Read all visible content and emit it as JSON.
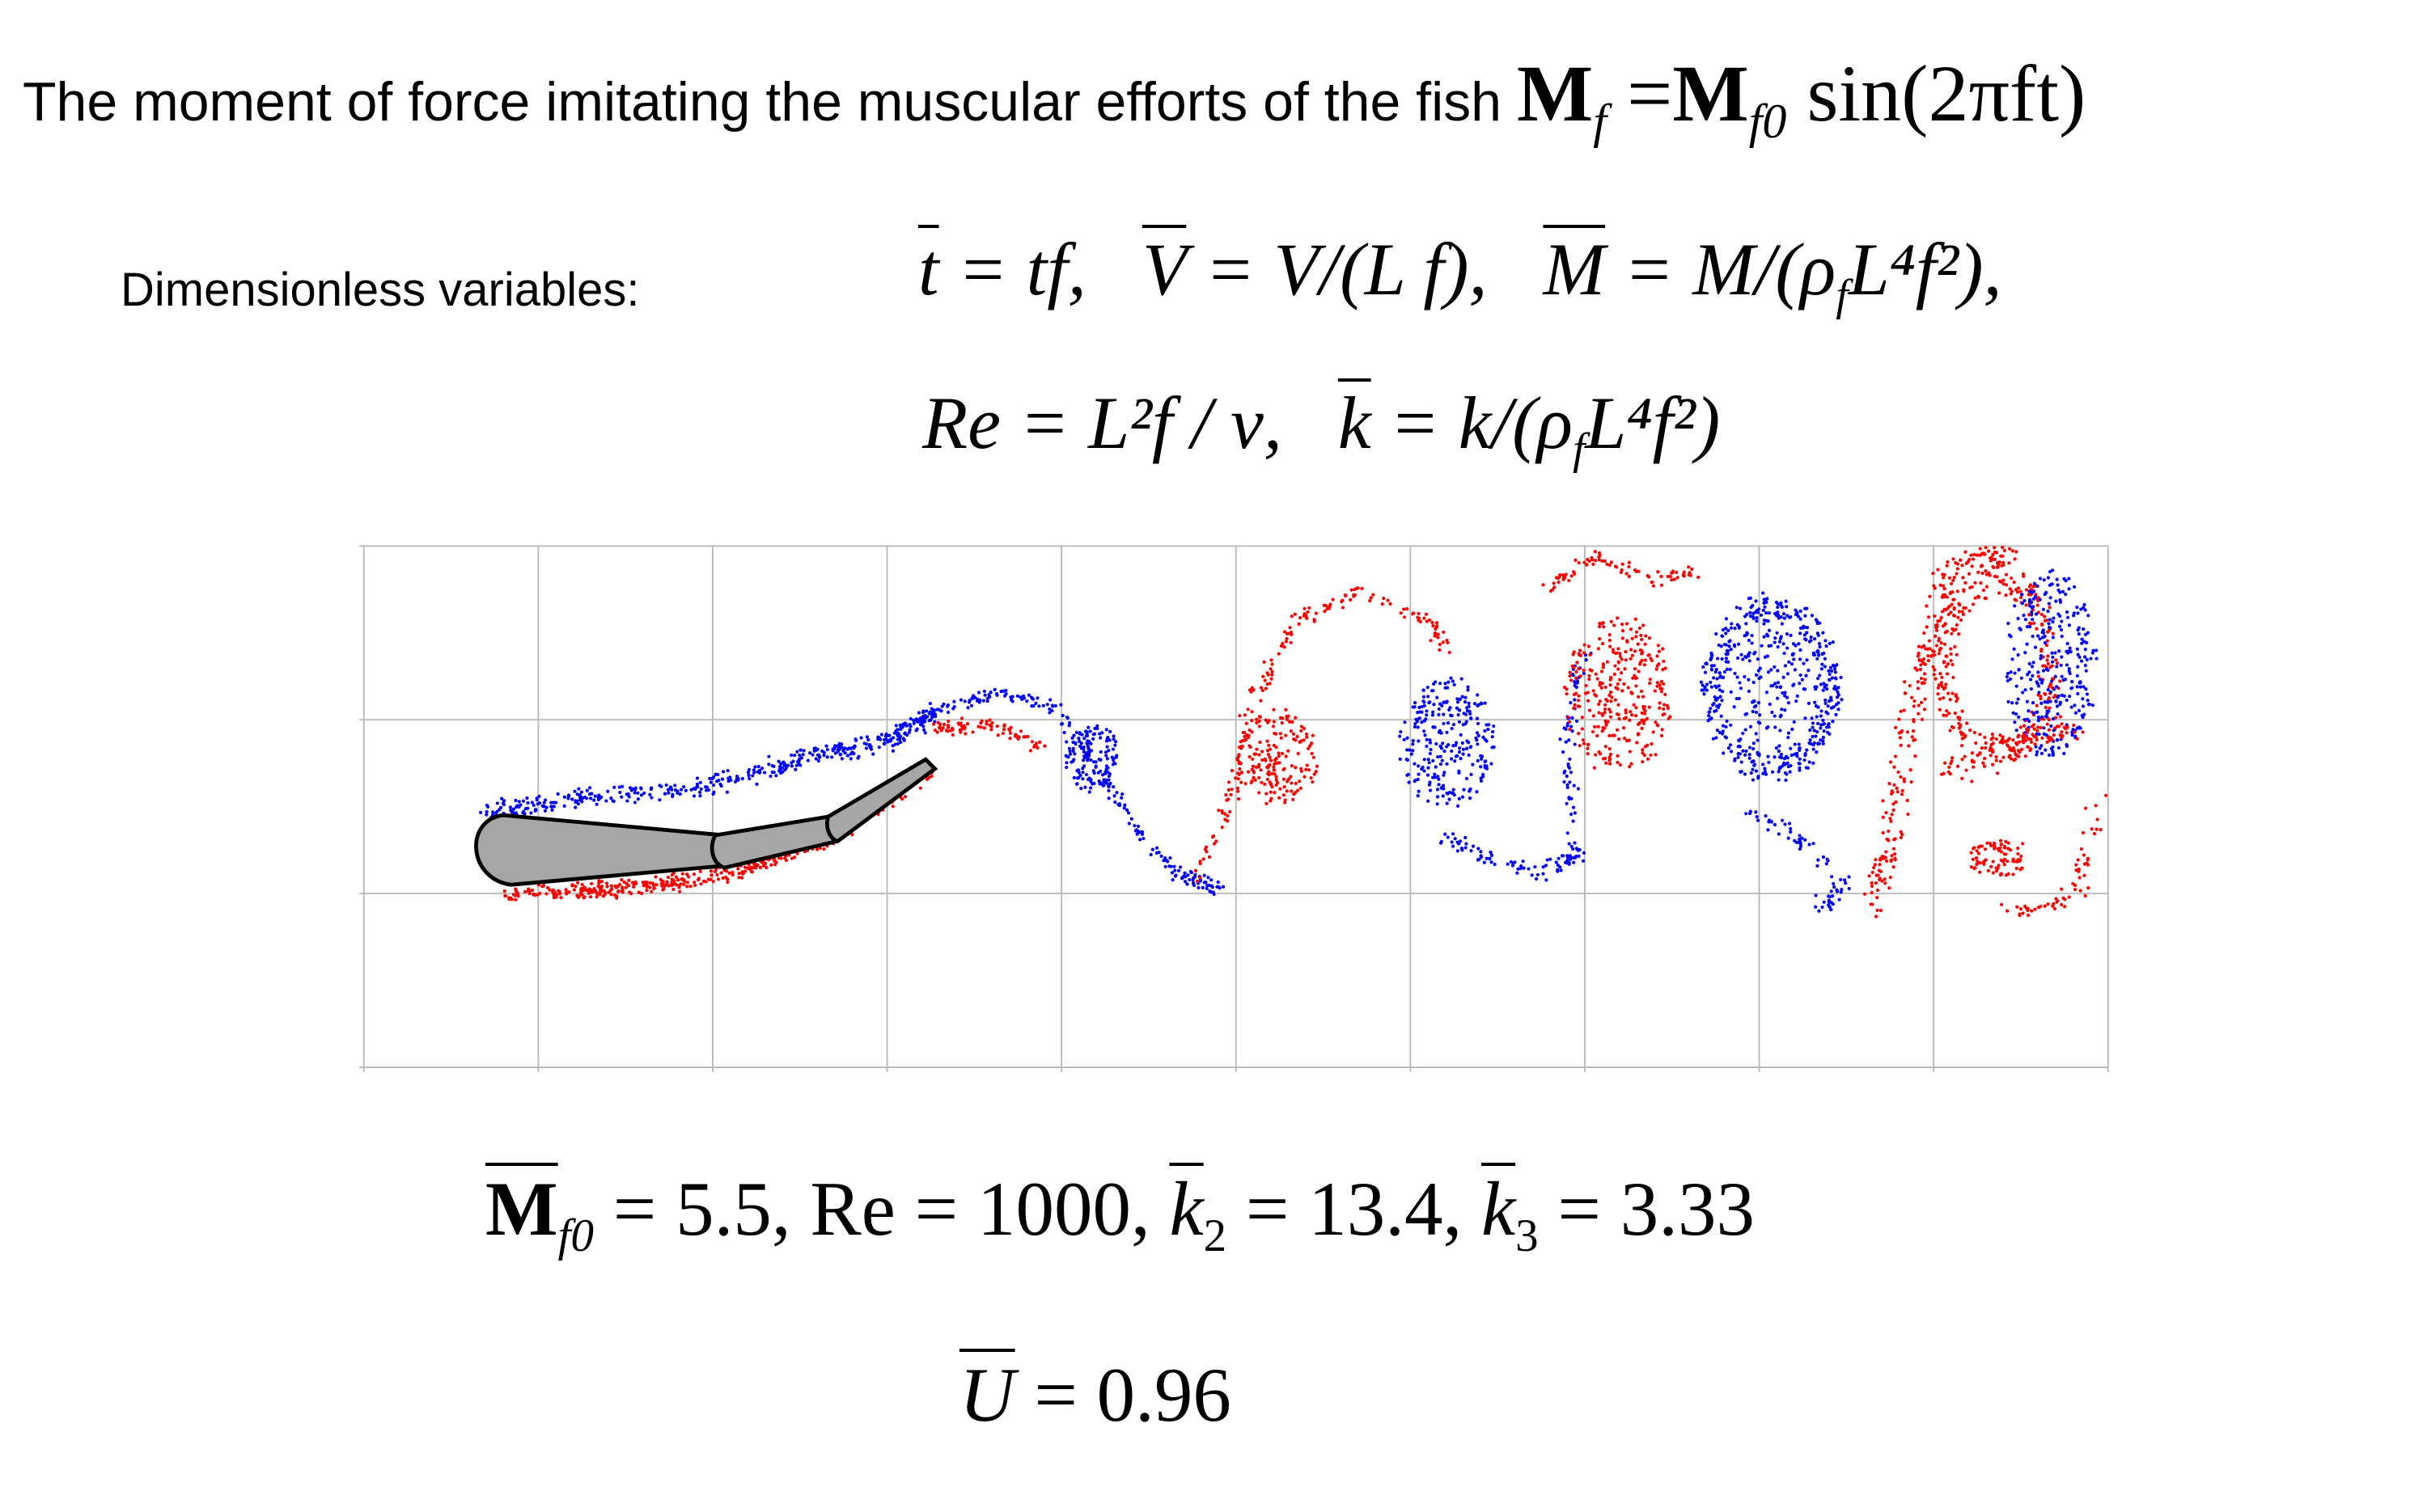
{
  "header": {
    "text": "The moment of force imitating the muscular efforts of the fish",
    "formula": [
      "M",
      "f",
      "=",
      "M",
      "f0",
      "sin(2πft)"
    ]
  },
  "dimensionless": {
    "label": "Dimensionless variables:",
    "line1": [
      "t",
      "= tf,",
      "V",
      "= V/(L f),",
      "M",
      "= M/(ρ",
      "f",
      "L⁴f²),"
    ],
    "line2": [
      "Re = L²f / ν,",
      "k",
      "= k/(ρ",
      "f",
      "L⁴f²)"
    ]
  },
  "parameters": [
    "M",
    "f0",
    "= 5.5,  Re = 1000,",
    "k",
    "2",
    "= 13.4,",
    "k",
    "3",
    "= 3.33"
  ],
  "velocity": [
    "U",
    "= 0.96"
  ]
}
